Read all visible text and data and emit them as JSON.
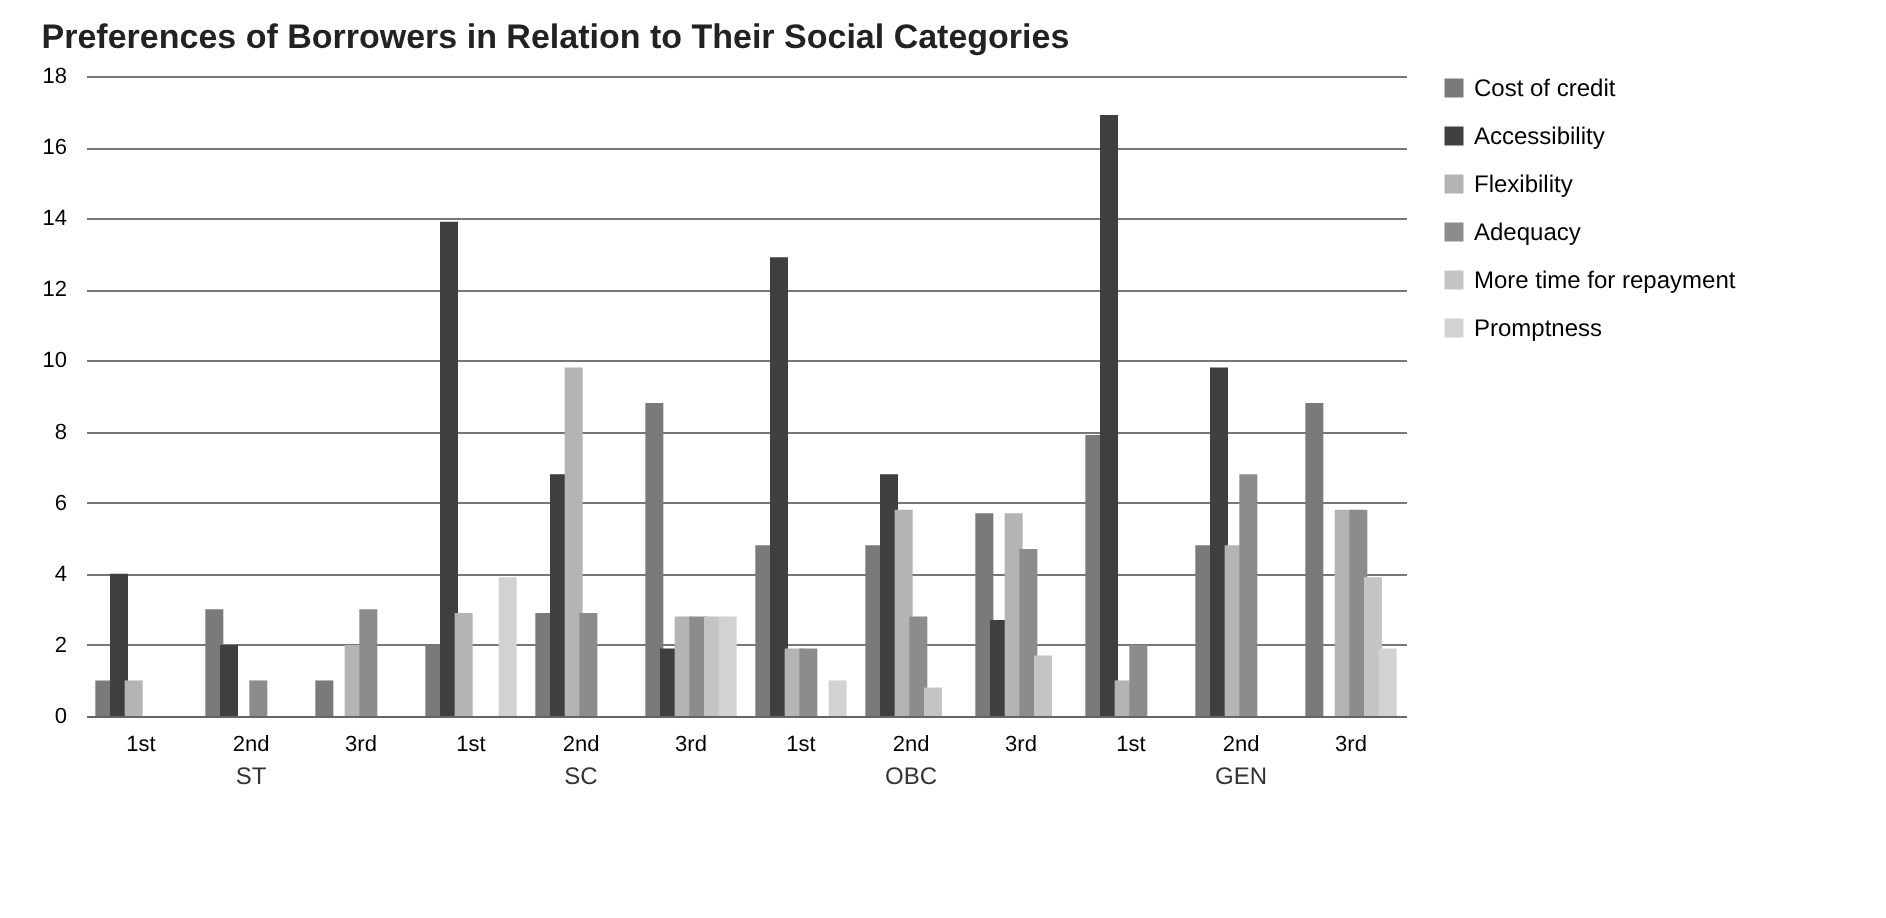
{
  "chart_data": {
    "type": "bar",
    "title": "Preferences of Borrowers in Relation to Their Social Categories",
    "categories": [
      "1st",
      "2nd",
      "3rd",
      "1st",
      "2nd",
      "3rd",
      "1st",
      "2nd",
      "3rd",
      "1st",
      "2nd",
      "3rd"
    ],
    "series": [
      {
        "name": "Cost of credit",
        "color": "#7a7a7a",
        "values": [
          1,
          3,
          1,
          2,
          2.9,
          8.8,
          4.8,
          4.8,
          5.7,
          7.9,
          4.8,
          8.8
        ]
      },
      {
        "name": "Accessibility",
        "color": "#3f3f3f",
        "values": [
          4,
          2,
          0,
          13.9,
          6.8,
          1.9,
          12.9,
          6.8,
          2.7,
          16.9,
          9.8,
          0
        ]
      },
      {
        "name": "Flexibility",
        "color": "#b4b4b4",
        "values": [
          1,
          0,
          2,
          2.9,
          9.8,
          2.8,
          1.9,
          5.8,
          5.7,
          1,
          4.8,
          5.8
        ]
      },
      {
        "name": "Adequacy",
        "color": "#8c8c8c",
        "values": [
          0,
          1,
          3,
          0,
          2.9,
          2.8,
          1.9,
          2.8,
          4.7,
          2,
          6.8,
          5.8
        ]
      },
      {
        "name": "More time for repayment",
        "color": "#c4c4c4",
        "values": [
          0,
          0,
          0,
          0,
          0,
          2.8,
          0,
          0.8,
          1.7,
          0,
          0,
          3.9
        ]
      },
      {
        "name": "Promptness",
        "color": "#d2d2d2",
        "values": [
          0,
          0,
          0,
          3.9,
          0,
          2.8,
          1,
          0,
          0,
          0,
          0,
          1.9
        ]
      }
    ],
    "ylim": [
      0,
      18
    ],
    "yticks": [
      0,
      2,
      4,
      6,
      8,
      10,
      12,
      14,
      16,
      18
    ],
    "grid": "y",
    "legend": "right",
    "annotations": [
      "ST",
      "SC",
      "OBC",
      "GEN"
    ]
  }
}
